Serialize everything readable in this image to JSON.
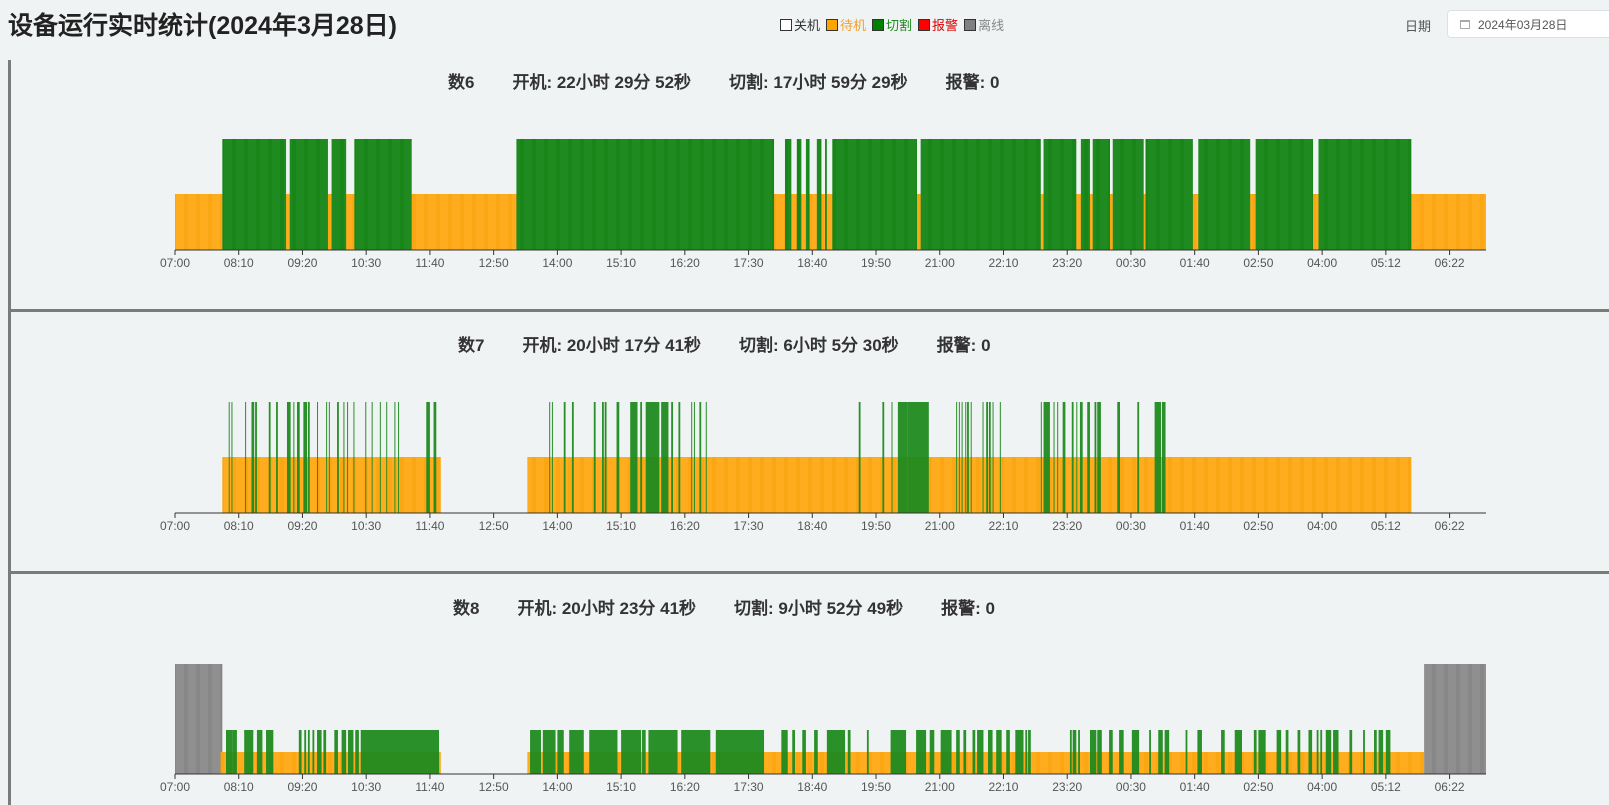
{
  "header": {
    "title": "设备运行实时统计(2024年3月28日)",
    "date_label": "日期",
    "date_value": "2024年03月28日"
  },
  "legend": [
    {
      "label": "关机",
      "color": "#ffffff",
      "text_color": "#333333"
    },
    {
      "label": "待机",
      "color": "#ffa500",
      "text_color": "#f0a030"
    },
    {
      "label": "切割",
      "color": "#008000",
      "text_color": "#1e8a1e"
    },
    {
      "label": "报警",
      "color": "#ff0000",
      "text_color": "#dd0000"
    },
    {
      "label": "离线",
      "color": "#808080",
      "text_color": "#888888"
    }
  ],
  "colors": {
    "standby": "#ffad1f",
    "cutting": "#1f8a1f",
    "offline": "#8f8f8f"
  },
  "chart_data": [
    {
      "type": "timeline",
      "name": "数6",
      "on_time": "开机: 22小时 29分 52秒",
      "cut_time": "切割: 17小时 59分 29秒",
      "alarm": "报警: 0",
      "x_ticks": [
        "07:00",
        "08:10",
        "09:20",
        "10:30",
        "11:40",
        "12:50",
        "14:00",
        "15:10",
        "16:20",
        "17:30",
        "18:40",
        "19:50",
        "21:00",
        "22:10",
        "23:20",
        "00:30",
        "01:40",
        "02:50",
        "04:00",
        "05:12",
        "06:22"
      ],
      "x_range_minutes": [
        0,
        1440
      ],
      "segments": [
        [
          0,
          1440,
          "standby_base"
        ],
        [
          52,
          122,
          "cutting"
        ],
        [
          126,
          168,
          "cutting"
        ],
        [
          172,
          188,
          "cutting"
        ],
        [
          197,
          260,
          "cutting"
        ],
        [
          375,
          658,
          "cutting"
        ],
        [
          670,
          677,
          "cutting"
        ],
        [
          683,
          688,
          "cutting"
        ],
        [
          693,
          697,
          "cutting"
        ],
        [
          705,
          710,
          "cutting"
        ],
        [
          714,
          716,
          "cutting"
        ],
        [
          722,
          815,
          "cutting"
        ],
        [
          819,
          951,
          "cutting"
        ],
        [
          954,
          990,
          "cutting"
        ],
        [
          995,
          1005,
          "cutting"
        ],
        [
          1008,
          1027,
          "cutting"
        ],
        [
          1030,
          1064,
          "cutting"
        ],
        [
          1066,
          1118,
          "cutting"
        ],
        [
          1124,
          1181,
          "cutting"
        ],
        [
          1187,
          1250,
          "cutting"
        ],
        [
          1256,
          1358,
          "cutting"
        ]
      ],
      "standby_gaps": [
        [
          0,
          52
        ],
        [
          1358,
          1440
        ]
      ]
    },
    {
      "type": "timeline",
      "name": "数7",
      "on_time": "开机: 20小时 17分 41秒",
      "cut_time": "切割: 6小时 5分 30秒",
      "alarm": "报警: 0",
      "x_ticks": [
        "07:00",
        "08:10",
        "09:20",
        "10:30",
        "11:40",
        "12:50",
        "14:00",
        "15:10",
        "16:20",
        "17:30",
        "18:40",
        "19:50",
        "21:00",
        "22:10",
        "23:20",
        "00:30",
        "01:40",
        "02:50",
        "04:00",
        "05:12",
        "06:22"
      ],
      "x_range_minutes": [
        0,
        1440
      ],
      "standby": [
        [
          52,
          292
        ],
        [
          387,
          1358
        ]
      ],
      "cutting": [
        [
          59,
          60
        ],
        [
          62,
          63
        ],
        [
          77,
          78
        ],
        [
          84,
          87
        ],
        [
          88,
          90
        ],
        [
          103,
          105
        ],
        [
          111,
          113
        ],
        [
          123,
          127
        ],
        [
          130,
          131
        ],
        [
          134,
          137
        ],
        [
          141,
          145
        ],
        [
          146,
          148
        ],
        [
          156,
          157
        ],
        [
          166,
          167
        ],
        [
          169,
          170
        ],
        [
          178,
          180
        ],
        [
          185,
          186
        ],
        [
          189,
          190
        ],
        [
          196,
          197
        ],
        [
          209,
          210
        ],
        [
          216,
          217
        ],
        [
          225,
          226
        ],
        [
          232,
          233
        ],
        [
          241,
          242
        ],
        [
          245,
          246
        ],
        [
          276,
          280
        ],
        [
          284,
          287
        ],
        [
          411,
          412
        ],
        [
          414,
          415
        ],
        [
          427,
          429
        ],
        [
          436,
          438
        ],
        [
          460,
          462
        ],
        [
          469,
          471
        ],
        [
          472,
          474
        ],
        [
          485,
          488
        ],
        [
          500,
          508
        ],
        [
          511,
          513
        ],
        [
          517,
          532
        ],
        [
          534,
          542
        ],
        [
          545,
          547
        ],
        [
          553,
          555
        ],
        [
          567,
          568
        ],
        [
          570,
          571
        ],
        [
          576,
          578
        ],
        [
          583,
          584
        ],
        [
          751,
          753
        ],
        [
          777,
          779
        ],
        [
          787,
          788
        ],
        [
          794,
          805
        ],
        [
          805,
          828
        ],
        [
          858,
          859
        ],
        [
          861,
          862
        ],
        [
          864,
          865
        ],
        [
          868,
          869
        ],
        [
          870,
          872
        ],
        [
          874,
          875
        ],
        [
          887,
          888
        ],
        [
          891,
          893
        ],
        [
          894,
          896
        ],
        [
          898,
          899
        ],
        [
          906,
          907
        ],
        [
          951,
          952
        ],
        [
          954,
          961
        ],
        [
          965,
          966
        ],
        [
          969,
          970
        ],
        [
          975,
          978
        ],
        [
          985,
          987
        ],
        [
          990,
          991
        ],
        [
          994,
          997
        ],
        [
          1002,
          1005
        ],
        [
          1010,
          1012
        ],
        [
          1013,
          1017
        ],
        [
          1035,
          1038
        ],
        [
          1057,
          1059
        ],
        [
          1076,
          1083
        ],
        [
          1084,
          1088
        ]
      ]
    },
    {
      "type": "timeline",
      "name": "数8",
      "on_time": "开机: 20小时 23分 41秒",
      "cut_time": "切割: 9小时 52分 49秒",
      "alarm": "报警: 0",
      "x_ticks": [
        "07:00",
        "08:10",
        "09:20",
        "10:30",
        "11:40",
        "12:50",
        "14:00",
        "15:10",
        "16:20",
        "17:30",
        "18:40",
        "19:50",
        "21:00",
        "22:10",
        "23:20",
        "00:30",
        "01:40",
        "02:50",
        "04:00",
        "05:12",
        "06:22"
      ],
      "x_range_minutes": [
        0,
        1440
      ],
      "offline": [
        [
          0,
          52
        ],
        [
          1372,
          1440
        ]
      ],
      "standby": [
        [
          50,
          292
        ],
        [
          387,
          1372
        ]
      ],
      "cutting": [
        [
          56,
          63
        ],
        [
          63,
          68
        ],
        [
          76,
          86
        ],
        [
          90,
          96
        ],
        [
          100,
          108
        ],
        [
          136,
          139
        ],
        [
          142,
          144
        ],
        [
          146,
          148
        ],
        [
          151,
          153
        ],
        [
          156,
          161
        ],
        [
          163,
          166
        ],
        [
          175,
          179
        ],
        [
          183,
          188
        ],
        [
          190,
          196
        ],
        [
          198,
          202
        ],
        [
          204,
          290
        ],
        [
          390,
          402
        ],
        [
          404,
          418
        ],
        [
          420,
          427
        ],
        [
          433,
          449
        ],
        [
          455,
          486
        ],
        [
          490,
          512
        ],
        [
          513,
          517
        ],
        [
          520,
          552
        ],
        [
          556,
          588
        ],
        [
          594,
          647
        ],
        [
          666,
          673
        ],
        [
          678,
          681
        ],
        [
          689,
          693
        ],
        [
          702,
          706
        ],
        [
          716,
          736
        ],
        [
          739,
          742
        ],
        [
          760,
          762
        ],
        [
          786,
          803
        ],
        [
          814,
          825
        ],
        [
          829,
          834
        ],
        [
          841,
          853
        ],
        [
          858,
          862
        ],
        [
          866,
          869
        ],
        [
          876,
          879
        ],
        [
          881,
          888
        ],
        [
          893,
          898
        ],
        [
          902,
          908
        ],
        [
          913,
          917
        ],
        [
          923,
          932
        ],
        [
          934,
          936
        ],
        [
          937,
          940
        ],
        [
          983,
          985
        ],
        [
          986,
          990
        ],
        [
          992,
          994
        ],
        [
          1005,
          1012
        ],
        [
          1013,
          1018
        ],
        [
          1026,
          1030
        ],
        [
          1037,
          1042
        ],
        [
          1051,
          1059
        ],
        [
          1070,
          1072
        ],
        [
          1080,
          1085
        ],
        [
          1087,
          1092
        ],
        [
          1110,
          1112
        ],
        [
          1123,
          1128
        ],
        [
          1149,
          1153
        ],
        [
          1164,
          1172
        ],
        [
          1185,
          1188
        ],
        [
          1190,
          1198
        ],
        [
          1210,
          1215
        ],
        [
          1220,
          1223
        ],
        [
          1233,
          1236
        ],
        [
          1245,
          1249
        ],
        [
          1254,
          1256
        ],
        [
          1258,
          1260
        ],
        [
          1264,
          1270
        ],
        [
          1272,
          1278
        ],
        [
          1290,
          1293
        ],
        [
          1305,
          1307
        ],
        [
          1317,
          1320
        ],
        [
          1322,
          1327
        ],
        [
          1330,
          1335
        ]
      ]
    }
  ]
}
